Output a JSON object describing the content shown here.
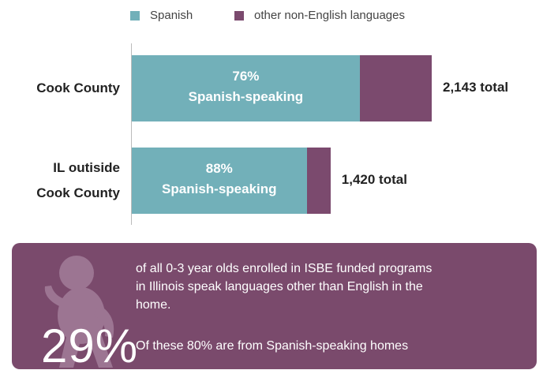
{
  "chart_data": {
    "type": "stacked_bar_percent",
    "categories": [
      "Cook County",
      "IL outiside\nCook County"
    ],
    "series": [
      {
        "name": "Spanish",
        "color": "#72b0b9",
        "values": [
          76,
          88
        ],
        "value_labels": [
          "76%",
          "88%"
        ]
      },
      {
        "name": "other non-English languages",
        "color": "#7b4a6e",
        "values": [
          24,
          12
        ]
      }
    ],
    "segment_label": "Spanish-speaking",
    "totals": [
      2143,
      1420
    ],
    "total_labels": [
      "2,143 total",
      "1,420 total"
    ]
  },
  "callout": {
    "big": "29%",
    "text": "of all 0-3 year olds enrolled in ISBE funded programs in Illinois speak languages other than English in the home.",
    "note": "Of these 80% are from Spanish-speaking homes"
  }
}
